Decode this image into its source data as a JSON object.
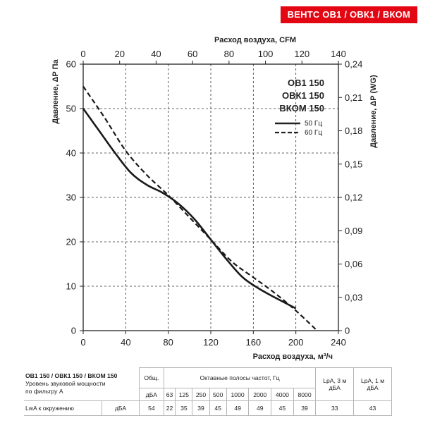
{
  "badge": "ВЕНТС ОВ1 / ОВК1 / ВКОМ",
  "chart_data": {
    "type": "line",
    "x_label": "Расход воздуха, м³/ч",
    "x_ticks": [
      0,
      40,
      80,
      120,
      160,
      200,
      240
    ],
    "x_range": [
      0,
      240
    ],
    "x2_label": "Расход воздуха, CFM",
    "x2_ticks": [
      0,
      20,
      40,
      60,
      80,
      100,
      120,
      140
    ],
    "x2_range": [
      0,
      140
    ],
    "y_label": "Давление, ΔP Па",
    "y_ticks": [
      0,
      10,
      20,
      30,
      40,
      50,
      60
    ],
    "y_range": [
      0,
      60
    ],
    "y2_label": "Давление, ΔP (WG)",
    "y2_ticks": [
      "0",
      "0,03",
      "0,06",
      "0,09",
      "0,12",
      "0,15",
      "0,18",
      "0,21",
      "0,24"
    ],
    "y2_range": [
      0,
      0.24
    ],
    "grid": "dashed",
    "model_lines": [
      "ОВ1 150",
      "ОВК1 150",
      "ВКОМ 150"
    ],
    "series": [
      {
        "name": "50 Гц",
        "style": "solid",
        "x": [
          0,
          15,
          30,
          45,
          60,
          75,
          90,
          105,
          120,
          135,
          150,
          165,
          180,
          200
        ],
        "y": [
          50,
          45,
          40,
          35.5,
          32.8,
          31,
          28.5,
          25,
          20.5,
          16,
          12,
          9.5,
          7.5,
          5
        ]
      },
      {
        "name": "60 Гц",
        "style": "dashed",
        "x": [
          0,
          20,
          40,
          60,
          80,
          100,
          120,
          140,
          160,
          180,
          200,
          220
        ],
        "y": [
          55,
          48,
          40.5,
          35,
          30.5,
          25.5,
          20.5,
          15.5,
          12,
          8.5,
          4.5,
          0
        ]
      }
    ],
    "legend_position": "top-right"
  },
  "table": {
    "title": "ОВ1 150 / ОВК1 150 / ВКОМ 150",
    "subtitle_1": "Уровень звуковой мощности",
    "subtitle_2": "по фильтру А",
    "col_total": "Общ.",
    "col_octave": "Октавные полосы частот, Гц",
    "col_lpa3": "LpA, 3 м",
    "col_lpa1": "LpA, 1 м",
    "unit": "дБА",
    "freqs": [
      "63",
      "125",
      "250",
      "500",
      "1000",
      "2000",
      "4000",
      "8000"
    ],
    "row_label": "LwA к окружению",
    "row_unit": "дБА",
    "total": "54",
    "values": [
      "22",
      "35",
      "39",
      "45",
      "49",
      "49",
      "45",
      "39"
    ],
    "lpa3": "33",
    "lpa1": "43"
  }
}
